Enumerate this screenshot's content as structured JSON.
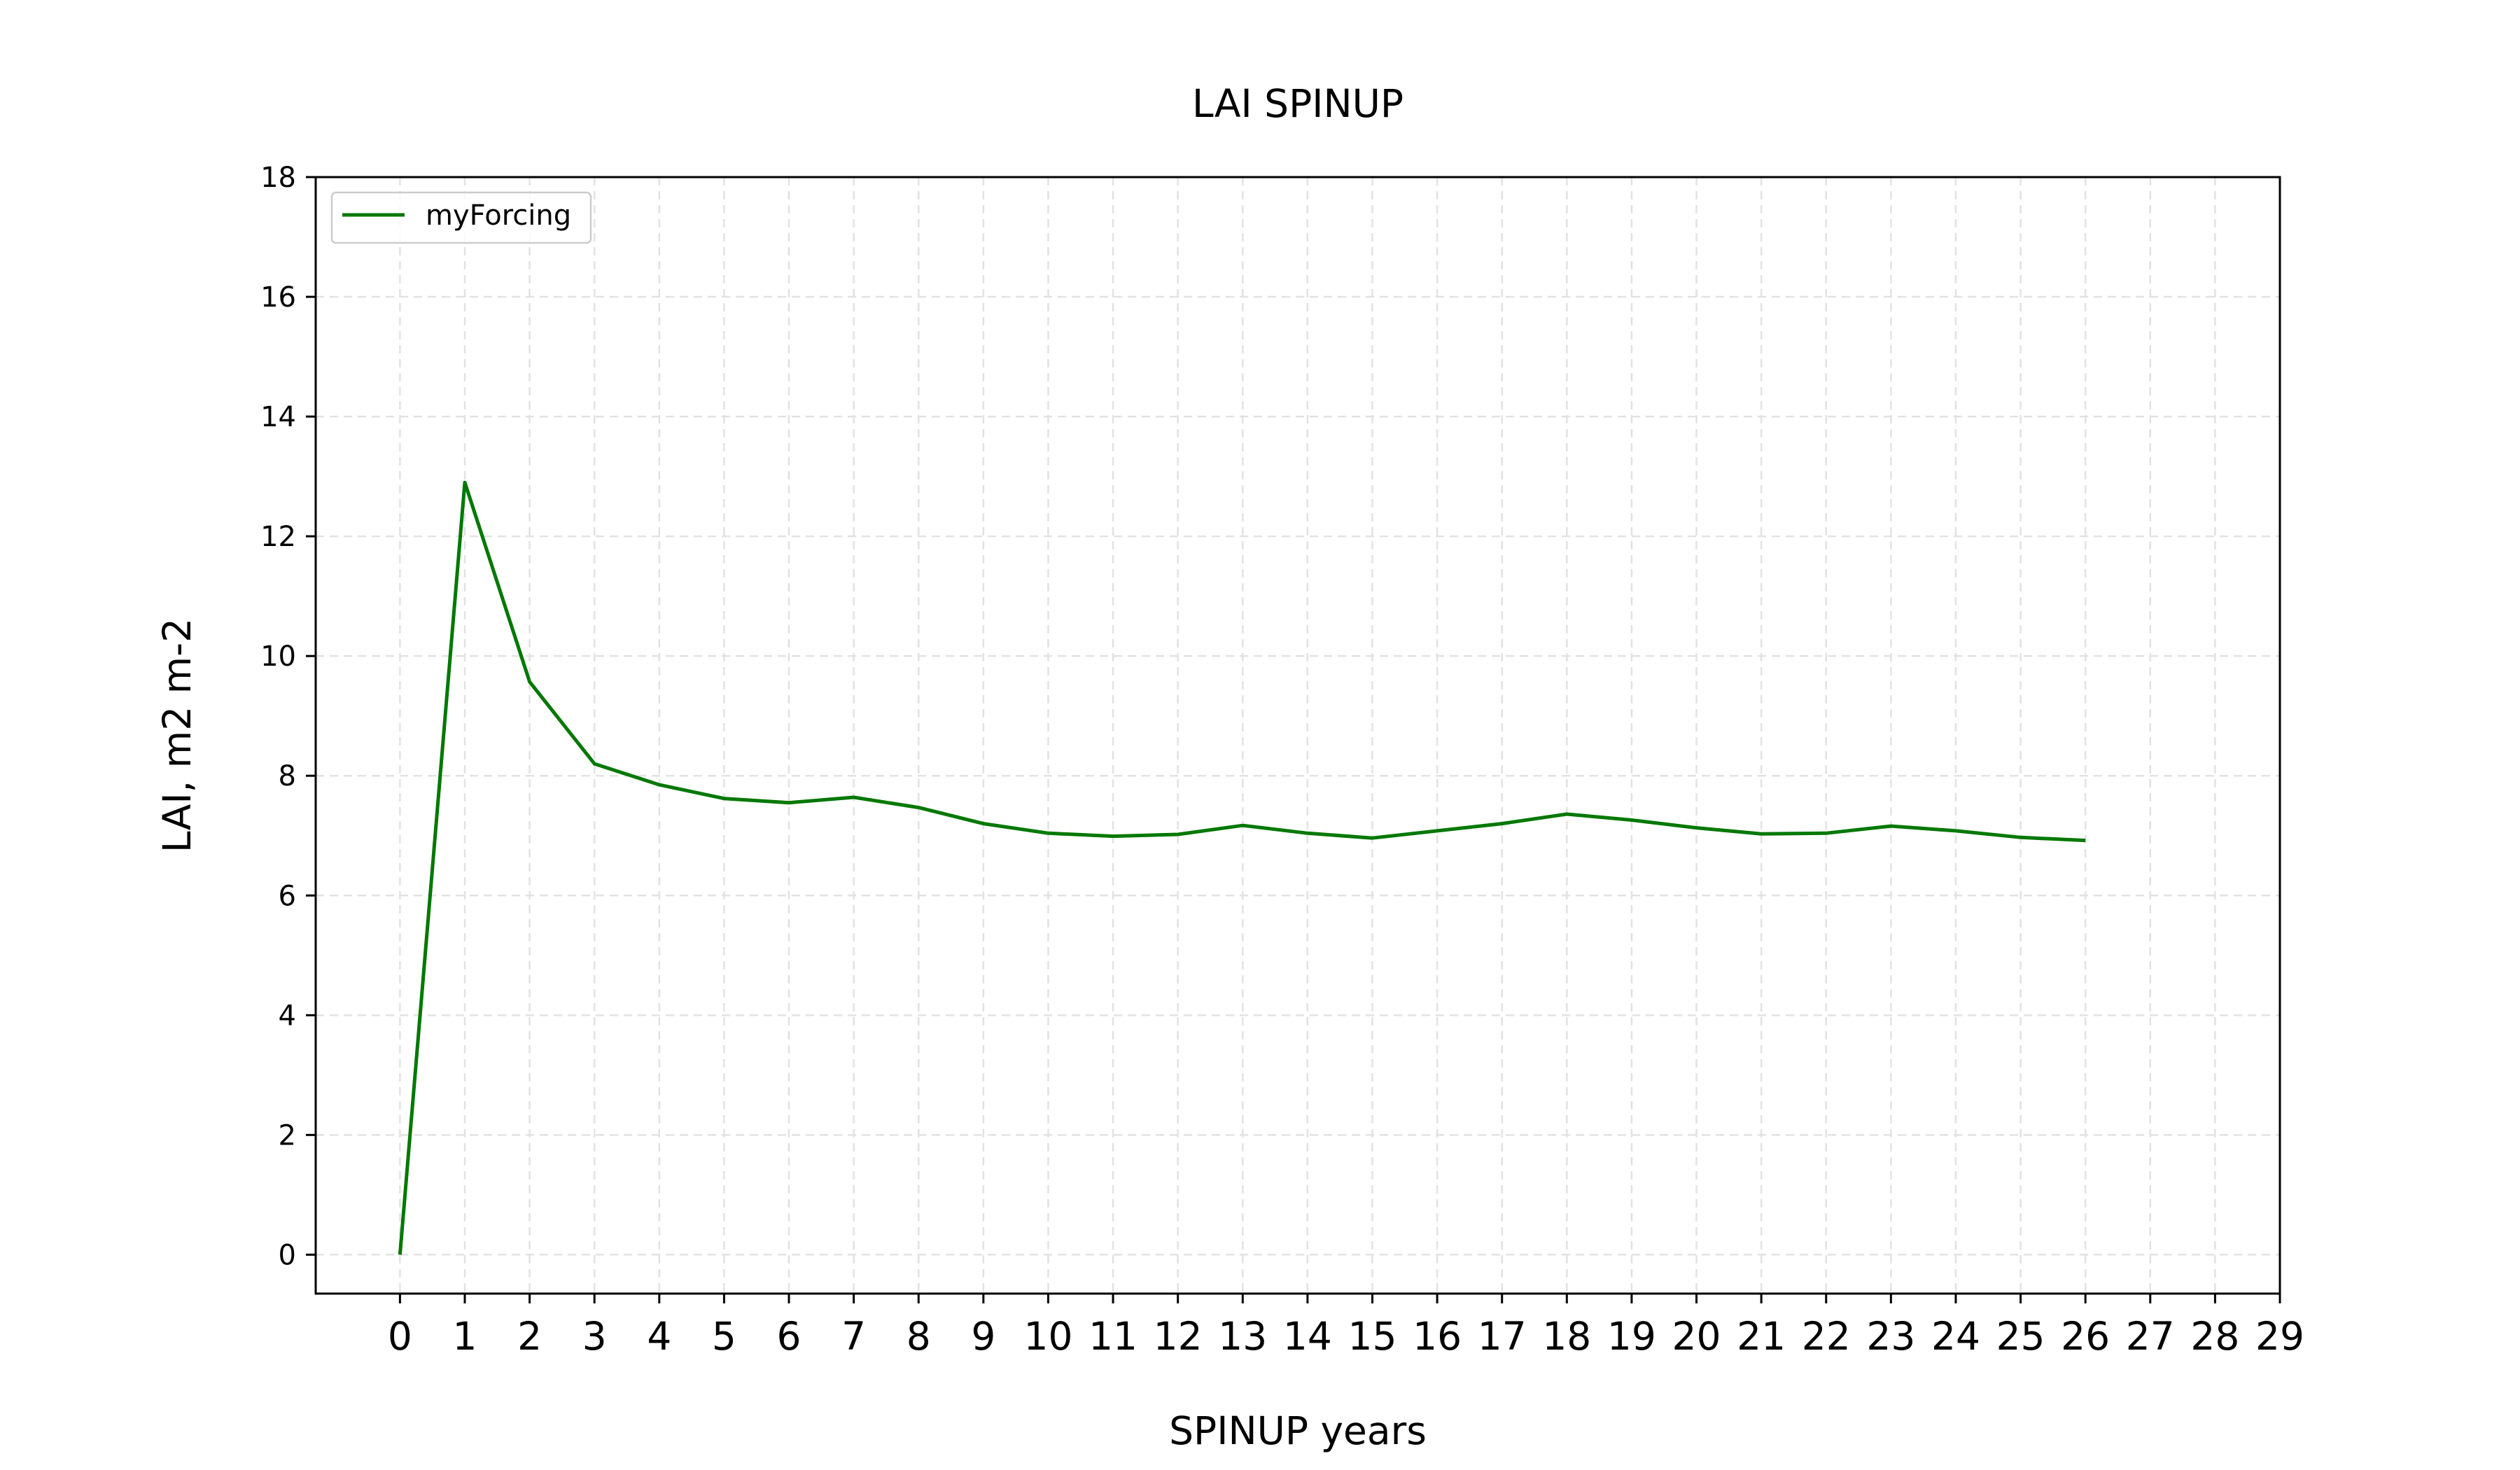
{
  "chart_data": {
    "type": "line",
    "title": "LAI SPINUP",
    "xlabel": "SPINUP years",
    "ylabel": "LAI, m2 m-2",
    "xlim": [
      -1.3,
      29
    ],
    "ylim": [
      -0.65,
      18
    ],
    "x_ticks": [
      0,
      1,
      2,
      3,
      4,
      5,
      6,
      7,
      8,
      9,
      10,
      11,
      12,
      13,
      14,
      15,
      16,
      17,
      18,
      19,
      20,
      21,
      22,
      23,
      24,
      25,
      26,
      27,
      28,
      29
    ],
    "y_ticks": [
      0,
      2,
      4,
      6,
      8,
      10,
      12,
      14,
      16,
      18
    ],
    "grid": true,
    "legend_position": "top-left",
    "series": [
      {
        "name": "myForcing",
        "color": "#007800",
        "x": [
          0,
          1,
          2,
          3,
          4,
          5,
          6,
          7,
          8,
          9,
          10,
          11,
          12,
          13,
          14,
          15,
          16,
          17,
          18,
          19,
          20,
          21,
          22,
          23,
          24,
          25,
          26
        ],
        "y": [
          0,
          12.9,
          9.57,
          8.2,
          7.85,
          7.62,
          7.55,
          7.64,
          7.47,
          7.2,
          7.04,
          6.99,
          7.02,
          7.17,
          7.04,
          6.96,
          7.08,
          7.2,
          7.36,
          7.26,
          7.13,
          7.03,
          7.04,
          7.16,
          7.08,
          6.97,
          6.92
        ]
      }
    ]
  }
}
